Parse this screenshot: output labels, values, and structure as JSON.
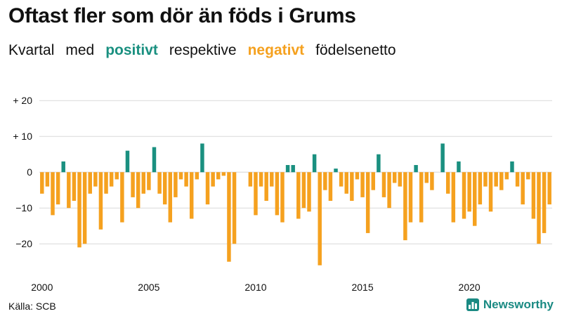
{
  "title": "Oftast fler som dör än föds i Grums",
  "subtitle": {
    "prefix": "Kvartal",
    "med": "med",
    "positive": "positivt",
    "middle": "respektive",
    "negative": "negativt",
    "suffix": "födelsenetto"
  },
  "colors": {
    "positive": "#1a9080",
    "negative": "#f5a11f",
    "grid": "#d9d9d9",
    "text": "#111111"
  },
  "source": "Källa: SCB",
  "brand": {
    "name": "Newsworthy",
    "icon": "bar-chart-icon"
  },
  "chart_data": {
    "type": "bar",
    "title": "Oftast fler som dör än föds i Grums",
    "xlabel": "",
    "ylabel": "",
    "x_start": "2000 Q1",
    "ylim": [
      -28,
      22
    ],
    "yticks": [
      20,
      10,
      0,
      -10,
      -20
    ],
    "ytick_labels": [
      "+ 20",
      "+ 10",
      "0",
      "−10",
      "−20"
    ],
    "xtick_labels": [
      "2000",
      "2005",
      "2010",
      "2015",
      "2020"
    ],
    "grid": true,
    "legend": "none",
    "values": [
      -6,
      -4,
      -12,
      -9,
      3,
      -10,
      -8,
      -21,
      -20,
      -6,
      -4,
      -16,
      -6,
      -4,
      -2,
      -14,
      6,
      -7,
      -10,
      -6,
      -5,
      7,
      -6,
      -9,
      -14,
      -7,
      -2,
      -4,
      -13,
      -2,
      8,
      -9,
      -4,
      -2,
      -1,
      -25,
      -20,
      0,
      0,
      -4,
      -12,
      -4,
      -8,
      -4,
      -12,
      -14,
      2,
      2,
      -13,
      -10,
      -11,
      5,
      -26,
      -5,
      -8,
      1,
      -4,
      -6,
      -8,
      -2,
      -7,
      -17,
      -5,
      5,
      -7,
      -10,
      -3,
      -4,
      -19,
      -14,
      2,
      -14,
      -3,
      -5,
      0,
      8,
      -6,
      -14,
      3,
      -13,
      -11,
      -15,
      -9,
      -4,
      -11,
      -4,
      -5,
      -2,
      3,
      -4,
      -9,
      -2,
      -13,
      -20,
      -17,
      -9
    ]
  }
}
